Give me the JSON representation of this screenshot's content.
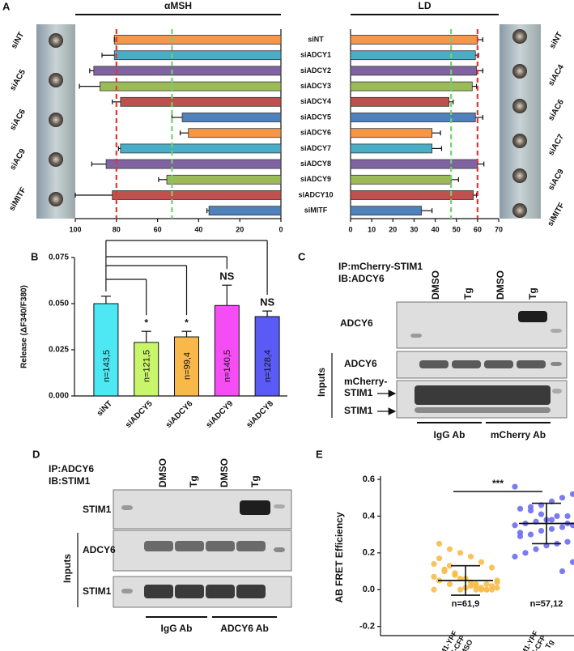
{
  "panel_labels": [
    "A",
    "B",
    "C",
    "D",
    "E"
  ],
  "photos": {
    "left": [
      "siNT",
      "siAC5",
      "siAC6",
      "siAC9",
      "siMITF"
    ],
    "right": [
      "siNT",
      "siAC4",
      "siAC6",
      "siAC7",
      "siAC9",
      "siMITF"
    ]
  },
  "chart_data": [
    {
      "type": "hbar",
      "title": "αMSH",
      "categories": [
        "siNT",
        "siADCY1",
        "siADCY2",
        "siADCY3",
        "siADCY4",
        "siADCY5",
        "siADCY6",
        "siADCY7",
        "siADCY8",
        "siADCY9",
        "siADCY10",
        "siMITF"
      ],
      "values": [
        81,
        81,
        91,
        88,
        78,
        48,
        45,
        78,
        85,
        55.5,
        82,
        35
      ],
      "errors": [
        0,
        6,
        2,
        10,
        4,
        5,
        4,
        1,
        7,
        4,
        18,
        1
      ],
      "colors": [
        "#f79646",
        "#4bacc6",
        "#8064a2",
        "#9bbb59",
        "#c0504d",
        "#4f81bd",
        "#f79646",
        "#4bacc6",
        "#8064a2",
        "#9bbb59",
        "#c0504d",
        "#4f81bd"
      ],
      "xlim": [
        100,
        0
      ],
      "xticks": [
        100,
        80,
        60,
        40,
        20,
        0
      ],
      "reference_lines": [
        {
          "value": 80,
          "color": "#e8342f"
        },
        {
          "value": 53,
          "color": "#6fd36f"
        }
      ]
    },
    {
      "type": "hbar",
      "title": "LD",
      "values": [
        60,
        59,
        59.5,
        57.5,
        46.5,
        59,
        38.5,
        38.5,
        60,
        47.5,
        58,
        33.5
      ],
      "errors": [
        2.5,
        1.5,
        3,
        2,
        2,
        3.5,
        4,
        4.5,
        3,
        3.5,
        1.5,
        5
      ],
      "colors": [
        "#f79646",
        "#4bacc6",
        "#8064a2",
        "#9bbb59",
        "#c0504d",
        "#4f81bd",
        "#f79646",
        "#4bacc6",
        "#8064a2",
        "#9bbb59",
        "#c0504d",
        "#4f81bd"
      ],
      "xlim": [
        0,
        70
      ],
      "xticks": [
        0,
        10,
        20,
        30,
        40,
        50,
        60,
        70
      ],
      "reference_lines": [
        {
          "value": 60,
          "color": "#e8342f"
        },
        {
          "value": 47.5,
          "color": "#6fd36f"
        }
      ]
    },
    {
      "type": "bar",
      "ylabel": "Release (ΔF340/F380)",
      "categories": [
        "siNT",
        "siADCY5",
        "siADCY6",
        "siADCY9",
        "siADCY8"
      ],
      "values": [
        0.05,
        0.029,
        0.032,
        0.049,
        0.043
      ],
      "errors": [
        0.004,
        0.006,
        0.003,
        0.011,
        0.003
      ],
      "colors": [
        "#4ee8f5",
        "#c9f56b",
        "#f8b84a",
        "#f54cf5",
        "#5a5af5"
      ],
      "annotations": [
        "n=143,5",
        "n=121,5",
        "n=99,4",
        "n=140,5",
        "n=128,4"
      ],
      "significance": [
        null,
        "*",
        "*",
        "NS",
        "NS"
      ],
      "ylim": [
        0,
        0.075
      ],
      "yticks": [
        {
          "value": 0,
          "label": "0.000"
        },
        {
          "value": 0.025,
          "label": "0.025"
        },
        {
          "value": 0.05,
          "label": "0.050"
        },
        {
          "value": 0.075,
          "label": "0.075"
        }
      ]
    },
    {
      "type": "scatter",
      "ylabel": "AB FRET Efficiency",
      "categories": [
        [
          "STIM1-YPF",
          "+ADCY6-CFP",
          "DMSO"
        ],
        [
          "STIM1-YPF",
          "+ADCY6-CFP",
          "Tg"
        ]
      ],
      "series": [
        {
          "color": "#f7bd4a",
          "values": [
            0.0,
            0.0,
            0.01,
            0.02,
            0.0,
            0.03,
            0.05,
            0.04,
            0.0,
            0.02,
            0.06,
            0.08,
            0.1,
            0.07,
            0.12,
            0.15,
            0.18,
            0.2,
            0.22,
            0.25,
            0.05,
            0.03,
            0.0,
            0.01,
            0.09,
            0.11,
            0.14,
            0.02,
            0.0,
            0.04,
            0.06,
            0.13,
            0.17,
            0.01,
            0.0,
            0.03
          ]
        },
        {
          "color": "#6e6ef0",
          "values": [
            0.56,
            0.52,
            0.5,
            0.48,
            0.46,
            0.45,
            0.44,
            0.42,
            0.4,
            0.4,
            0.38,
            0.37,
            0.36,
            0.35,
            0.35,
            0.34,
            0.33,
            0.32,
            0.3,
            0.29,
            0.28,
            0.26,
            0.25,
            0.24,
            0.22,
            0.2,
            0.18,
            0.15,
            0.1,
            0.38,
            0.41,
            0.43,
            0.31,
            0.27,
            0.36
          ]
        }
      ],
      "means": [
        0.05,
        0.36
      ],
      "sds": [
        0.08,
        0.11
      ],
      "annotations": [
        "n=61,9",
        "n=57,12"
      ],
      "significance": "***",
      "ylim": [
        -0.25,
        0.6
      ],
      "yticks": [
        -0.2,
        {
          "value": 0,
          "label": "0.0"
        },
        0.2,
        0.4,
        0.6
      ]
    }
  ],
  "blots": [
    {
      "ip": "IP:mCherry-STIM1",
      "ib": "IB:ADCY6",
      "lanes": [
        "DMSO",
        "Tg",
        "DMSO",
        "Tg"
      ],
      "rows": [
        [
          "ADCY6"
        ],
        [
          "ADCY6"
        ],
        [
          "mCherry-",
          "STIM1"
        ],
        [
          "STIM1"
        ]
      ],
      "inputs": "Inputs",
      "groups": [
        "IgG Ab",
        "mCherry Ab"
      ]
    },
    {
      "ip": "IP:ADCY6",
      "ib": "IB:STIM1",
      "lanes": [
        "DMSO",
        "Tg",
        "DMSO",
        "Tg"
      ],
      "rows": [
        [
          "STIM1"
        ],
        [
          "ADCY6"
        ],
        [
          "STIM1"
        ]
      ],
      "inputs": "Inputs",
      "groups": [
        "IgG Ab",
        "ADCY6 Ab"
      ]
    }
  ]
}
